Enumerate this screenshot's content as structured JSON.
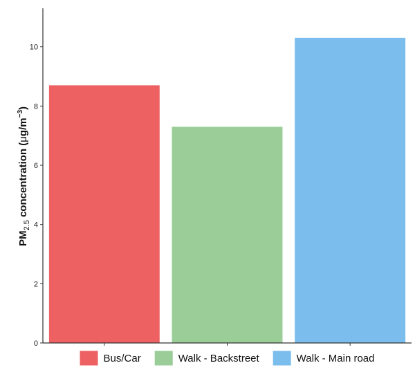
{
  "chart_data": {
    "type": "bar",
    "categories": [
      "Bus/Car",
      "Walk - Backstreet",
      "Walk - Main road"
    ],
    "values": [
      8.7,
      7.3,
      10.3
    ],
    "colors": [
      "#EE6163",
      "#9ACD98",
      "#7BBDEC"
    ],
    "ylabel": {
      "prefix": "PM",
      "subscript": "2.5",
      "middle": " concentration (",
      "mu": "μ",
      "unit": "g/m",
      "exponent": "−3",
      "suffix": ")"
    },
    "xlabel": "",
    "ylim": [
      0,
      11.3
    ],
    "yticks": [
      0,
      2,
      4,
      6,
      8,
      10
    ],
    "grid": false,
    "legend": {
      "position": "bottom",
      "entries": [
        "Bus/Car",
        "Walk - Backstreet",
        "Walk - Main road"
      ]
    }
  }
}
